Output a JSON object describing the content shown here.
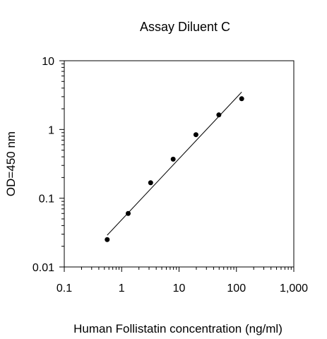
{
  "chart_data": {
    "type": "scatter",
    "title": "Assay Diluent C",
    "xlabel": "Human Follistatin concentration (ng/ml)",
    "ylabel": "OD=450 nm",
    "x_scale": "log",
    "y_scale": "log",
    "xlim": [
      0.1,
      1000
    ],
    "ylim": [
      0.01,
      10
    ],
    "x_tick_labels": [
      "0.1",
      "1",
      "10",
      "100",
      "1,000"
    ],
    "y_tick_labels": [
      "0.01",
      "0.1",
      "1",
      "10"
    ],
    "grid": false,
    "legend": "none",
    "series": [
      {
        "x": [
          0.56,
          1.3,
          3.2,
          7.9,
          19.7,
          49.4,
          123.5
        ],
        "y": [
          0.025,
          0.06,
          0.168,
          0.37,
          0.84,
          1.63,
          2.8
        ]
      }
    ],
    "fit_line": {
      "x": [
        0.56,
        123.5
      ],
      "y": [
        0.029,
        3.5
      ]
    },
    "colors": {
      "points": "#000000",
      "line": "#000000",
      "axes": "#000000"
    }
  }
}
